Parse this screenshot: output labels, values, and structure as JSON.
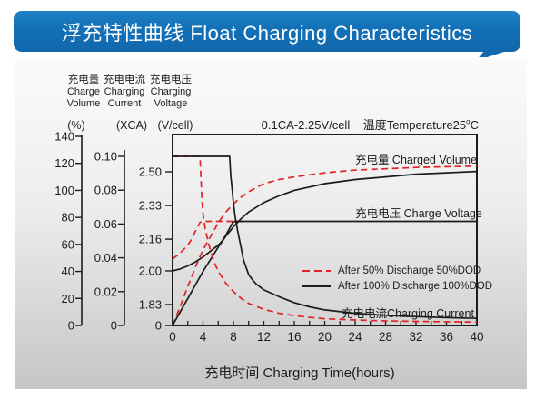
{
  "banner": {
    "title": "浮充特性曲线 Float Charging Characteristics",
    "color": "#1371b8"
  },
  "colors": {
    "red": "#e32126",
    "black": "#1c1c1c",
    "panel_top": "#fbfbfb",
    "panel_bottom": "#c6c6c6"
  },
  "chart_data": {
    "type": "line",
    "title": "浮充特性曲线 Float Charging Characteristics",
    "condition": {
      "main": "0.1CA-2.25V/cell",
      "temp_prefix": "温度Temperature25",
      "temp_sup": "o",
      "temp_unit": "C"
    },
    "xlabel": "充电时间 Charging Time(hours)",
    "x_range": [
      0,
      40
    ],
    "x_ticks": [
      0,
      4,
      8,
      12,
      16,
      20,
      24,
      28,
      32,
      36,
      40
    ],
    "x_minor_step": 2,
    "axes": {
      "percent": {
        "cn": "充电量",
        "en1": "Charge",
        "en2": "Volume",
        "unit": "(%)",
        "tick_values": [
          0,
          20,
          40,
          60,
          80,
          100,
          120,
          140
        ],
        "tick_labels": [
          "0",
          "20",
          "40",
          "60",
          "80",
          "100",
          "120",
          "140"
        ],
        "range": [
          0,
          140
        ]
      },
      "current": {
        "cn": "充电电流",
        "en1": "Charging",
        "en2": "Current",
        "unit": "(XCA)",
        "tick_values": [
          0,
          0.02,
          0.04,
          0.06,
          0.08,
          0.1
        ],
        "tick_labels": [
          "0",
          "0.02",
          "0.04",
          "0.06",
          "0.08",
          "0.10"
        ],
        "range": [
          0,
          0.1
        ]
      },
      "voltage": {
        "cn": "充电电压",
        "en1": "Charging",
        "en2": "Voltage",
        "unit": "(V/cell)",
        "tick_values": [
          0,
          1.83,
          2.0,
          2.16,
          2.33,
          2.5
        ],
        "tick_labels": [
          "0",
          "1.83",
          "2.00",
          "2.16",
          "2.33",
          "2.50"
        ],
        "range": [
          1.83,
          2.5
        ]
      }
    },
    "curve_labels": {
      "volume": "充电量 Charged Volume",
      "voltage": "充电电压 Charge Voltage",
      "current": "充电电流Charging Current"
    },
    "legend": [
      {
        "label": "After 50% Discharge 50%DOD",
        "style": "dashed",
        "color": "#e32126"
      },
      {
        "label": "After 100%  Discharge 100%DOD",
        "style": "solid",
        "color": "#1c1c1c"
      }
    ],
    "series": [
      {
        "name": "charged-volume-50dod",
        "scale": "percent",
        "style": "dashed",
        "color": "#e32126",
        "points": [
          [
            0,
            0
          ],
          [
            1,
            14
          ],
          [
            2,
            29
          ],
          [
            3,
            43
          ],
          [
            3.6,
            51
          ],
          [
            4,
            56
          ],
          [
            5,
            66
          ],
          [
            6,
            76
          ],
          [
            7,
            84
          ],
          [
            8,
            90
          ],
          [
            9,
            95
          ],
          [
            10,
            99
          ],
          [
            12,
            105
          ],
          [
            14,
            108
          ],
          [
            16,
            110
          ],
          [
            20,
            113
          ],
          [
            24,
            115
          ],
          [
            28,
            116
          ],
          [
            32,
            117
          ],
          [
            36,
            117.5
          ],
          [
            40,
            118
          ]
        ]
      },
      {
        "name": "charged-volume-100dod",
        "scale": "percent",
        "style": "solid",
        "color": "#1c1c1c",
        "points": [
          [
            0,
            0
          ],
          [
            1,
            10
          ],
          [
            2,
            20
          ],
          [
            3,
            30
          ],
          [
            4,
            40
          ],
          [
            5,
            49
          ],
          [
            6,
            58
          ],
          [
            7,
            66
          ],
          [
            8,
            73
          ],
          [
            9,
            79
          ],
          [
            10,
            84
          ],
          [
            12,
            91
          ],
          [
            14,
            96
          ],
          [
            16,
            100
          ],
          [
            20,
            105
          ],
          [
            24,
            108
          ],
          [
            28,
            110
          ],
          [
            32,
            112
          ],
          [
            36,
            113
          ],
          [
            40,
            114
          ]
        ]
      },
      {
        "name": "charging-current-50dod",
        "scale": "current",
        "style": "dashed",
        "color": "#e32126",
        "points": [
          [
            0,
            0.1
          ],
          [
            3.6,
            0.1
          ],
          [
            3.7,
            0.09
          ],
          [
            3.85,
            0.075
          ],
          [
            4,
            0.066
          ],
          [
            4.3,
            0.057
          ],
          [
            4.7,
            0.049
          ],
          [
            5,
            0.044
          ],
          [
            5.5,
            0.037
          ],
          [
            6,
            0.032
          ],
          [
            7,
            0.025
          ],
          [
            8,
            0.02
          ],
          [
            9,
            0.016
          ],
          [
            10,
            0.013
          ],
          [
            12,
            0.0095
          ],
          [
            14,
            0.0072
          ],
          [
            16,
            0.0058
          ],
          [
            18,
            0.0048
          ],
          [
            20,
            0.004
          ],
          [
            24,
            0.0032
          ],
          [
            28,
            0.0027
          ],
          [
            32,
            0.0024
          ],
          [
            36,
            0.0022
          ],
          [
            40,
            0.002
          ]
        ]
      },
      {
        "name": "charging-current-100dod",
        "scale": "current",
        "style": "solid",
        "color": "#1c1c1c",
        "points": [
          [
            0,
            0.1
          ],
          [
            7.5,
            0.1
          ],
          [
            7.65,
            0.088
          ],
          [
            7.8,
            0.082
          ],
          [
            8,
            0.072
          ],
          [
            8.3,
            0.062
          ],
          [
            8.6,
            0.055
          ],
          [
            9,
            0.046
          ],
          [
            9.3,
            0.039
          ],
          [
            10,
            0.03
          ],
          [
            10.5,
            0.027
          ],
          [
            11,
            0.0245
          ],
          [
            12,
            0.021
          ],
          [
            14,
            0.017
          ],
          [
            16,
            0.0135
          ],
          [
            18,
            0.011
          ],
          [
            20,
            0.0092
          ],
          [
            24,
            0.0072
          ],
          [
            28,
            0.006
          ],
          [
            32,
            0.0052
          ],
          [
            36,
            0.0046
          ],
          [
            40,
            0.0042
          ]
        ]
      },
      {
        "name": "charge-voltage-50dod",
        "scale": "voltage",
        "style": "dashed",
        "color": "#e32126",
        "points": [
          [
            0,
            2.06
          ],
          [
            0.5,
            2.075
          ],
          [
            1,
            2.09
          ],
          [
            1.5,
            2.11
          ],
          [
            2,
            2.13
          ],
          [
            2.5,
            2.16
          ],
          [
            3,
            2.2
          ],
          [
            3.3,
            2.22
          ],
          [
            3.6,
            2.245
          ],
          [
            3.9,
            2.25
          ],
          [
            9.5,
            2.25
          ]
        ]
      },
      {
        "name": "charge-voltage-100dod",
        "scale": "voltage",
        "style": "solid",
        "color": "#1c1c1c",
        "points": [
          [
            0,
            2.0
          ],
          [
            1,
            2.01
          ],
          [
            2,
            2.025
          ],
          [
            3,
            2.045
          ],
          [
            4,
            2.07
          ],
          [
            5,
            2.1
          ],
          [
            6,
            2.13
          ],
          [
            6.5,
            2.15
          ],
          [
            7,
            2.18
          ],
          [
            7.5,
            2.215
          ],
          [
            7.9,
            2.245
          ],
          [
            8.2,
            2.25
          ],
          [
            40,
            2.25
          ]
        ]
      }
    ]
  }
}
